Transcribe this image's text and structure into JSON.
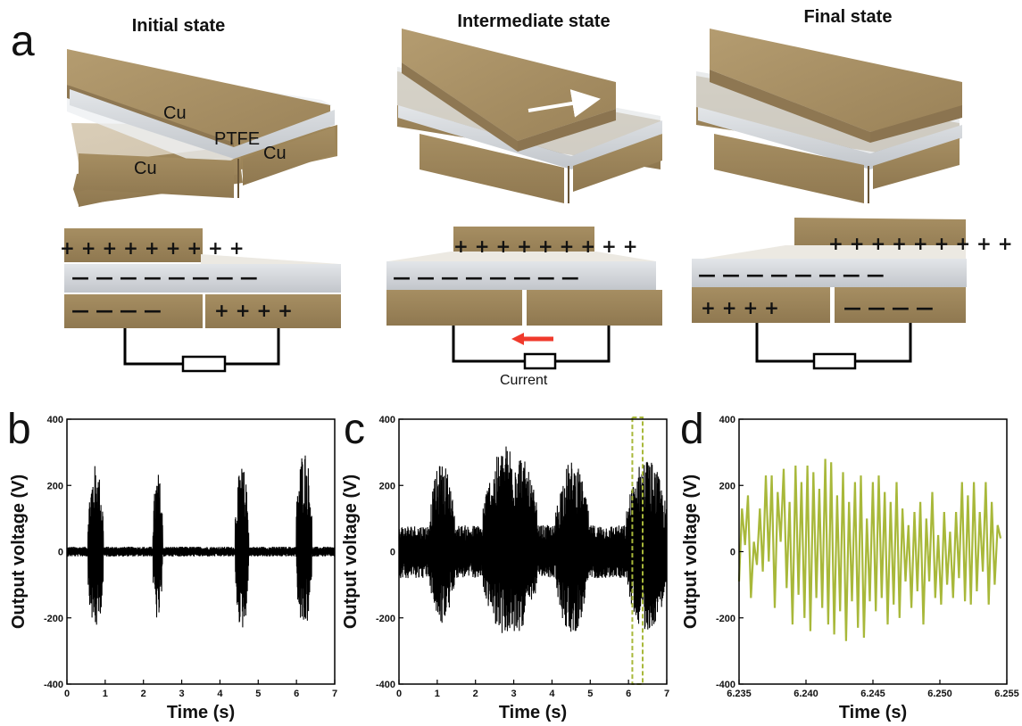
{
  "panel_a": {
    "letter": "a",
    "states": [
      "Initial state",
      "Intermediate state",
      "Final state"
    ],
    "materials": {
      "top_cu": "Cu",
      "ptfe": "PTFE",
      "bottom_left_cu": "Cu",
      "bottom_right_cu": "Cu"
    },
    "current_label": "Current",
    "colors": {
      "copper": "#a58d63",
      "ptfe": "#d4d8dc",
      "arrow_white": "#ffffff",
      "arrow_red": "#f03a2c"
    }
  },
  "chart_data": [
    {
      "panel": "b",
      "type": "line",
      "xlabel": "Time (s)",
      "ylabel": "Output voltage (V)",
      "xlim": [
        0,
        7
      ],
      "ylim": [
        -400,
        400
      ],
      "xticks": [
        "0",
        "1",
        "2",
        "3",
        "4",
        "5",
        "6",
        "7"
      ],
      "yticks": [
        "-400",
        "-200",
        "0",
        "200",
        "400"
      ],
      "bursts": [
        {
          "start": 0.55,
          "end": 0.95,
          "max": 265,
          "min": -240
        },
        {
          "start": 2.25,
          "end": 2.5,
          "max": 240,
          "min": -215
        },
        {
          "start": 4.4,
          "end": 4.75,
          "max": 260,
          "min": -240
        },
        {
          "start": 6.0,
          "end": 6.4,
          "max": 315,
          "min": -240
        }
      ],
      "baseline": 15,
      "color": "#000000"
    },
    {
      "panel": "c",
      "type": "line",
      "xlabel": "Time (s)",
      "ylabel": "Output voltage (V)",
      "xlim": [
        0,
        7
      ],
      "ylim": [
        -400,
        400
      ],
      "xticks": [
        "0",
        "1",
        "2",
        "3",
        "4",
        "5",
        "6",
        "7"
      ],
      "yticks": [
        "-400",
        "-200",
        "0",
        "200",
        "400"
      ],
      "bursts": [
        {
          "start": 0.8,
          "end": 1.45,
          "max": 270,
          "min": -220
        },
        {
          "start": 2.2,
          "end": 3.6,
          "max": 330,
          "min": -260
        },
        {
          "start": 4.1,
          "end": 4.95,
          "max": 275,
          "min": -250
        },
        {
          "start": 5.95,
          "end": 7.0,
          "max": 285,
          "min": -240
        }
      ],
      "baseline": 80,
      "highlight_x": [
        6.1,
        6.37
      ],
      "highlight_color": "#a8b83a",
      "color": "#000000"
    },
    {
      "panel": "d",
      "type": "line",
      "xlabel": "Time (s)",
      "ylabel": "Output voltage (V)",
      "xlim": [
        6.235,
        6.255
      ],
      "ylim": [
        -400,
        400
      ],
      "xticks": [
        "6.235",
        "6.240",
        "6.245",
        "6.250",
        "6.255"
      ],
      "yticks": [
        "-400",
        "-200",
        "0",
        "200",
        "400"
      ],
      "x_start": 6.235,
      "x_step": 0.000222,
      "values": [
        -90,
        130,
        20,
        170,
        -140,
        30,
        -40,
        130,
        -60,
        230,
        -30,
        230,
        -170,
        180,
        30,
        250,
        -110,
        150,
        -220,
        260,
        -130,
        210,
        -200,
        260,
        -240,
        240,
        -140,
        190,
        -170,
        280,
        -220,
        270,
        -250,
        170,
        -180,
        240,
        -270,
        150,
        -150,
        210,
        -230,
        230,
        -260,
        100,
        -150,
        210,
        -180,
        230,
        -140,
        180,
        -220,
        150,
        -160,
        210,
        -200,
        130,
        -90,
        80,
        -170,
        120,
        -120,
        150,
        -220,
        100,
        -90,
        180,
        -140,
        50,
        -160,
        120,
        -100,
        60,
        -140,
        120,
        -80,
        210,
        -150,
        170,
        -160,
        210,
        -120,
        120,
        -60,
        210,
        -160,
        150,
        -100,
        80,
        40
      ],
      "color": "#a8b83a"
    }
  ]
}
